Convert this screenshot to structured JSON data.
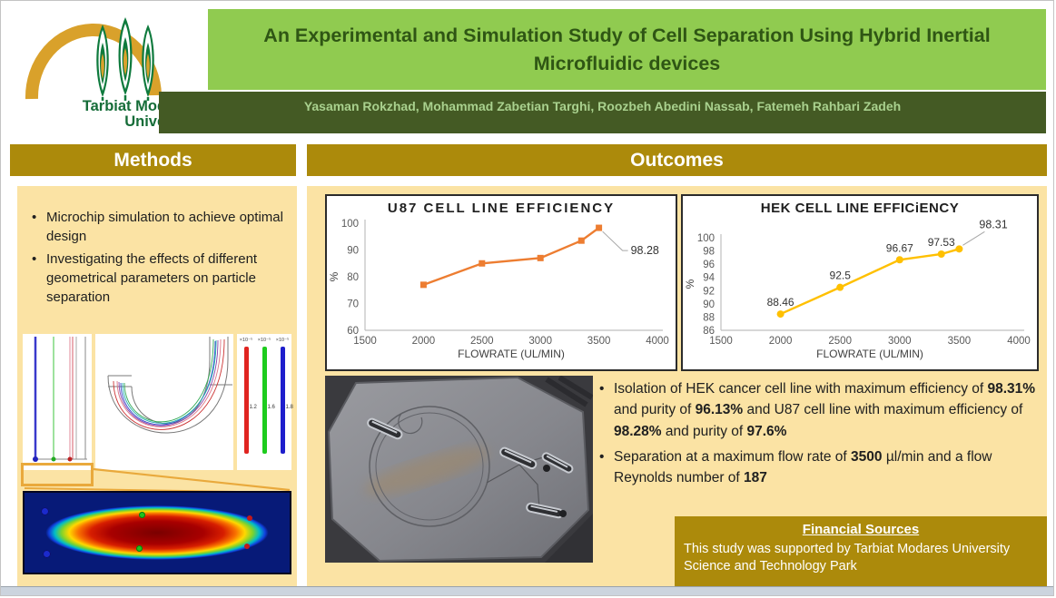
{
  "colors": {
    "gold_header": "#ac8a0b",
    "panel_tan": "#fbe3a4",
    "title_green_bg": "#90cb50",
    "title_text_green": "#2f5614",
    "authors_bar_green": "#445a24",
    "authors_text_green": "#a9d18e",
    "u87_line_orange": "#ed7d31",
    "hek_line_gold": "#ffc000",
    "axis_gray": "#bfbfbf",
    "tick_text_gray": "#595959"
  },
  "logo": {
    "line1": "Tarbiat Modares",
    "line2": "University"
  },
  "header": {
    "title": "An Experimental and Simulation Study of Cell Separation Using Hybrid Inertial Microfluidic devices",
    "authors": "Yasaman Rokzhad, Mohammad Zabetian Targhi, Roozbeh Abedini Nassab, Fatemeh Rahbari Zadeh"
  },
  "methods": {
    "heading": "Methods",
    "bullets": [
      "Microchip simulation to achieve optimal design",
      "Investigating the effects of different geometrical parameters on particle separation"
    ],
    "colorbars": [
      {
        "scale": "×10⁻⁵",
        "value": "1.2",
        "color": "#e02420"
      },
      {
        "scale": "×10⁻⁵",
        "value": "1.6",
        "color": "#1ecc1e"
      },
      {
        "scale": "×10⁻⁵",
        "value": "1.8",
        "color": "#1e1ecc"
      }
    ]
  },
  "outcomes": {
    "heading": "Outcomes",
    "bullets": [
      [
        {
          "t": "Isolation of HEK cancer cell line with maximum efficiency of "
        },
        {
          "t": "98.31%",
          "b": true
        },
        {
          "t": " and purity of "
        },
        {
          "t": "96.13%",
          "b": true
        },
        {
          "t": " and U87 cell line with maximum efficiency of "
        },
        {
          "t": "98.28%",
          "b": true
        },
        {
          "t": " and purity of "
        },
        {
          "t": "97.6%",
          "b": true
        }
      ],
      [
        {
          "t": "Separation at a maximum flow rate of "
        },
        {
          "t": "3500",
          "b": true
        },
        {
          "t": " µl/min and a flow Reynolds number of "
        },
        {
          "t": "187",
          "b": true
        }
      ]
    ],
    "financial": {
      "heading": "Financial Sources",
      "body": "This study was supported by Tarbiat Modares University Science and Technology Park"
    }
  },
  "chart_data": [
    {
      "type": "line",
      "title": "U87 CELL LINE EFFICIENCY",
      "x": [
        2000,
        2500,
        3000,
        3350,
        3500
      ],
      "y": [
        77,
        85,
        87,
        93.5,
        98.28
      ],
      "xlabel": "FLOWRATE (UL/MIN)",
      "ylabel": "%",
      "xlim": [
        1500,
        4000
      ],
      "ylim": [
        60,
        100
      ],
      "xticks": [
        1500,
        2000,
        2500,
        3000,
        3500,
        4000
      ],
      "yticks": [
        60,
        70,
        80,
        90,
        100
      ],
      "color": "#ed7d31",
      "marker": "square",
      "point_labels": false,
      "callout": {
        "text": "98.28",
        "dir": "down"
      },
      "grid": false,
      "legend": false
    },
    {
      "type": "line",
      "title": "HEK CELL LINE EFFICiENCY",
      "x": [
        2000,
        2500,
        3000,
        3350,
        3500
      ],
      "y": [
        88.46,
        92.5,
        96.67,
        97.53,
        98.31
      ],
      "labels": [
        "88.46",
        "92.5",
        "96.67",
        "97.53",
        "98.31"
      ],
      "xlabel": "FLOWRATE (UL/MIN)",
      "ylabel": "%",
      "xlim": [
        1500,
        4000
      ],
      "ylim": [
        86,
        100
      ],
      "xticks": [
        1500,
        2000,
        2500,
        3000,
        3500,
        4000
      ],
      "yticks": [
        86,
        88,
        90,
        92,
        94,
        96,
        98,
        100
      ],
      "color": "#ffc000",
      "marker": "circle",
      "point_labels": true,
      "callout": {
        "text": "98.31",
        "dir": "up"
      },
      "grid": false,
      "legend": false
    }
  ]
}
